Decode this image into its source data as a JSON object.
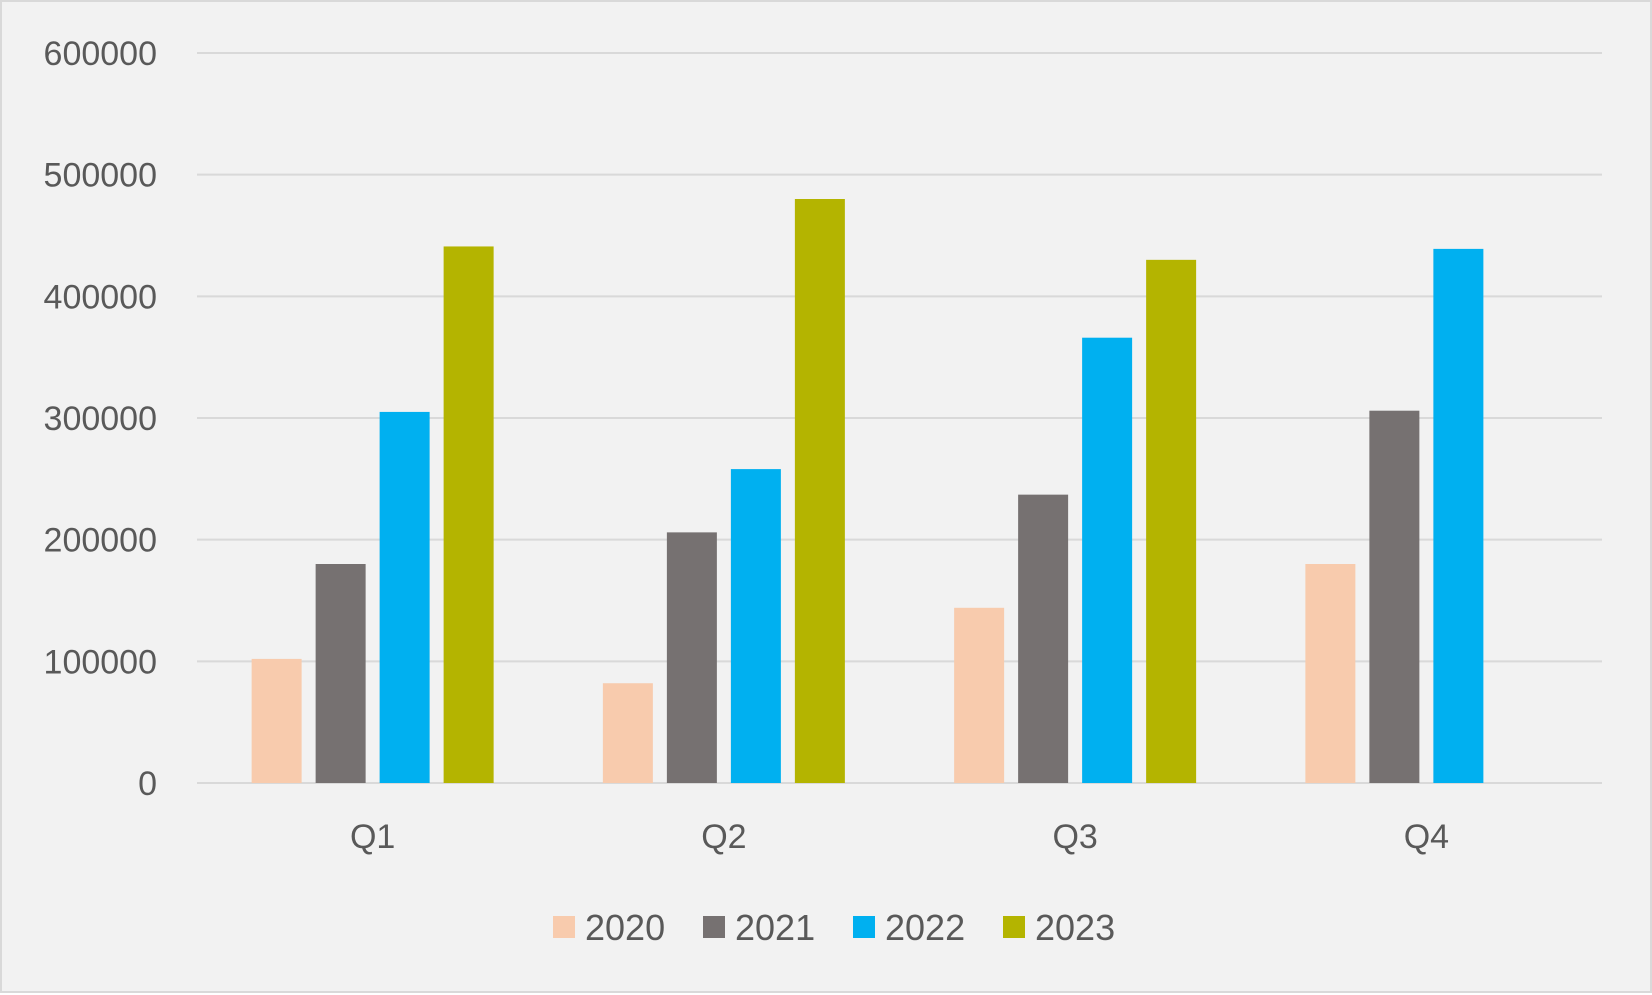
{
  "chart_data": {
    "type": "bar",
    "title": "",
    "xlabel": "",
    "ylabel": "",
    "categories": [
      "Q1",
      "Q2",
      "Q3",
      "Q4"
    ],
    "series": [
      {
        "name": "2020",
        "color": "#f8cbad",
        "values": [
          102000,
          82000,
          144000,
          180000
        ]
      },
      {
        "name": "2021",
        "color": "#767171",
        "values": [
          180000,
          206000,
          237000,
          306000
        ]
      },
      {
        "name": "2022",
        "color": "#00b0f0",
        "values": [
          305000,
          258000,
          366000,
          439000
        ]
      },
      {
        "name": "2023",
        "color": "#b4b400",
        "values": [
          441000,
          480000,
          430000,
          null
        ]
      }
    ],
    "ylim": [
      0,
      600000
    ],
    "yticks": [
      "0",
      "100000",
      "200000",
      "300000",
      "400000",
      "500000",
      "600000"
    ],
    "grid": true,
    "legend_position": "bottom"
  }
}
